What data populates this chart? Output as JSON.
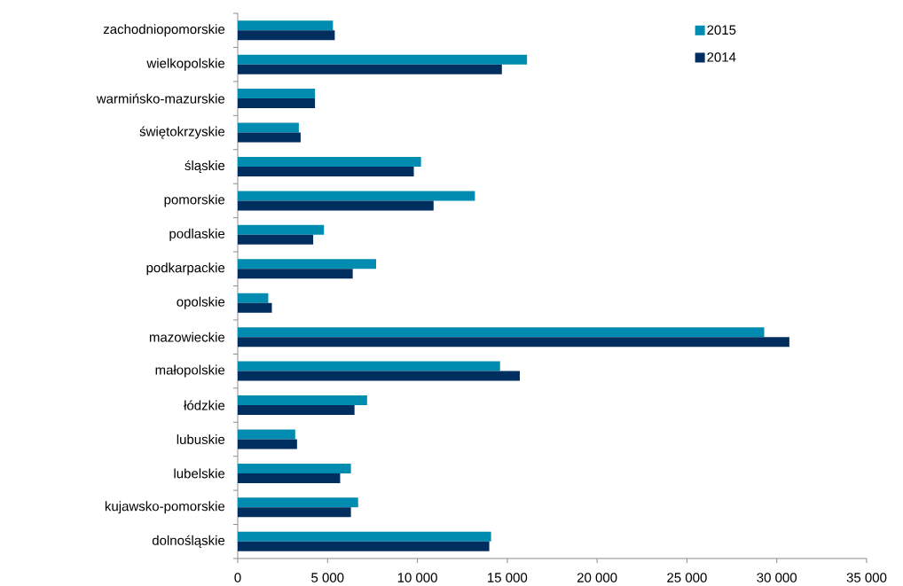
{
  "chart_data": {
    "type": "bar",
    "orientation": "horizontal",
    "categories": [
      "zachodniopomorskie",
      "wielkopolskie",
      "warmińsko-mazurskie",
      "świętokrzyskie",
      "śląskie",
      "pomorskie",
      "podlaskie",
      "podkarpackie",
      "opolskie",
      "mazowieckie",
      "małopolskie",
      "łódzkie",
      "lubuskie",
      "lubelskie",
      "kujawsko-pomorskie",
      "dolnośląskie"
    ],
    "series": [
      {
        "name": "2015",
        "color": "#008bb0",
        "values": [
          5300,
          16100,
          4300,
          3400,
          10200,
          13200,
          4800,
          7700,
          1700,
          29300,
          14600,
          7200,
          3200,
          6300,
          6700,
          14100
        ]
      },
      {
        "name": "2014",
        "color": "#002e5e",
        "values": [
          5400,
          14700,
          4300,
          3500,
          9800,
          10900,
          4200,
          6400,
          1900,
          30700,
          15700,
          6500,
          3300,
          5700,
          6300,
          14000
        ]
      }
    ],
    "xlim": [
      0,
      35000
    ],
    "xticks": [
      0,
      {
        "value": 5000,
        "label": "5 000"
      },
      {
        "value": 10000,
        "label": "10 000"
      },
      {
        "value": 15000,
        "label": "15 000"
      },
      {
        "value": 20000,
        "label": "20 000"
      },
      {
        "value": 25000,
        "label": "25 000"
      },
      {
        "value": 30000,
        "label": "30 000"
      },
      {
        "value": 35000,
        "label": "35 000"
      }
    ],
    "legend": "top right",
    "grid": false
  }
}
